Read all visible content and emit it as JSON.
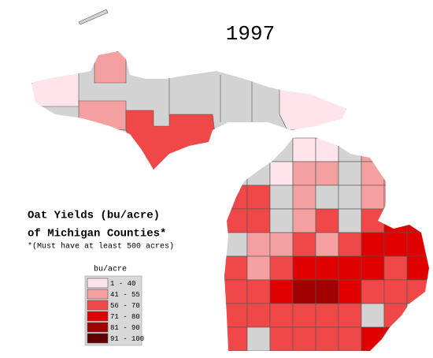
{
  "map": {
    "title": "1997",
    "subtitle_lines": [
      "Oat Yields (bu/acre)",
      "of Michigan Counties*"
    ],
    "note": "*(Must have at least 500 acres)",
    "legend": {
      "title": "bu/acre",
      "items": [
        {
          "label": "1 - 40",
          "color": "#ffe4ec"
        },
        {
          "label": "41 - 55",
          "color": "#f4a0a0"
        },
        {
          "label": "56 - 70",
          "color": "#f04848"
        },
        {
          "label": "71 - 80",
          "color": "#e00000"
        },
        {
          "label": "81 - 90",
          "color": "#a00000"
        },
        {
          "label": "91 - 100",
          "color": "#600000"
        }
      ]
    }
  }
}
